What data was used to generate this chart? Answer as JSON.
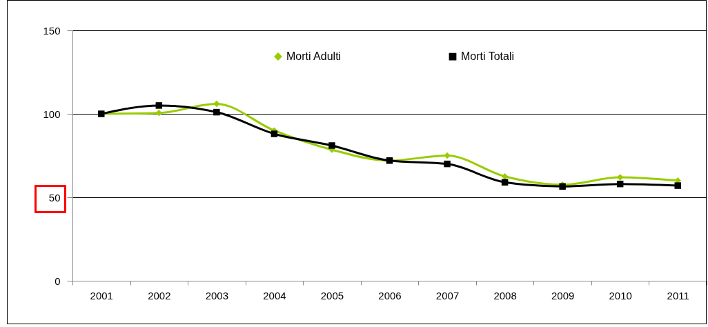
{
  "chart_data": {
    "type": "line",
    "categories": [
      "2001",
      "2002",
      "2003",
      "2004",
      "2005",
      "2006",
      "2007",
      "2008",
      "2009",
      "2010",
      "2011"
    ],
    "series": [
      {
        "name": "Morti Adulti",
        "color": "#99cc00",
        "marker": "diamond",
        "values": [
          100,
          100.5,
          106,
          90,
          78.5,
          72,
          75,
          62.5,
          57.5,
          62,
          60
        ]
      },
      {
        "name": "Morti Totali",
        "color": "#000000",
        "marker": "square",
        "values": [
          100,
          105,
          101,
          88,
          81,
          72,
          70,
          59,
          56.5,
          58,
          57
        ]
      }
    ],
    "ylim": [
      0,
      150
    ],
    "yticks": [
      0,
      50,
      100,
      150
    ],
    "grid": "y",
    "legend": "top"
  }
}
